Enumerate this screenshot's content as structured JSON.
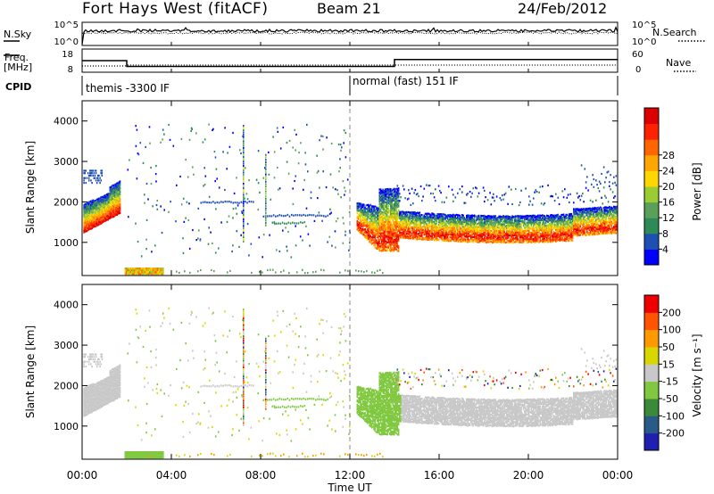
{
  "header": {
    "station": "Fort Hays West (fitACF)",
    "beam": "Beam 21",
    "date": "24/Feb/2012"
  },
  "left_labels": {
    "nsky": "N.Sky",
    "freq_line1": "Freq.",
    "freq_line2": "[MHz]",
    "cpid": "CPID"
  },
  "right_labels": {
    "nsearch": "N.Search",
    "nave": "Nave"
  },
  "cpid_modes": [
    "themis -3300 IF",
    "normal (fast) 151 IF"
  ],
  "colors": {
    "power": [
      "#0000ff",
      "#1e50b4",
      "#2e8b57",
      "#5aa05a",
      "#9acd32",
      "#ffd700",
      "#ffa500",
      "#ff6600",
      "#ff2200",
      "#dd0000"
    ],
    "velocity": [
      "#2020b0",
      "#2a5a8a",
      "#3a8a3a",
      "#80c840",
      "#c8c8c8",
      "#d8d800",
      "#ff9900",
      "#ff5500",
      "#ee0000"
    ]
  },
  "chart_data": [
    {
      "type": "line",
      "name": "noise",
      "ylabels_left": [
        "10^5",
        "10^0"
      ],
      "ylabels_right": [
        "10^5",
        "10^0"
      ]
    },
    {
      "type": "line",
      "name": "frequency-nave",
      "ylabels_left": [
        "18",
        "8"
      ],
      "ylabels_right": [
        "60",
        "0"
      ],
      "freq_steps": [
        {
          "t": 0,
          "mhz": 13
        },
        {
          "t": 2,
          "mhz": 10.5
        },
        {
          "t": 14,
          "mhz": 13.5
        },
        {
          "t": 24,
          "mhz": 13.5
        }
      ]
    },
    {
      "type": "heatmap",
      "name": "power",
      "ylabel": "Slant Range [km]",
      "yticks": [
        "1000",
        "2000",
        "3000",
        "4000"
      ],
      "yrange": [
        180,
        4500
      ],
      "colorbar_label": "Power [dB]",
      "colorbar_ticks": [
        "4",
        "8",
        "12",
        "16",
        "20",
        "24",
        "28"
      ],
      "colorbar_range": [
        0,
        30
      ]
    },
    {
      "type": "heatmap",
      "name": "velocity",
      "ylabel": "Slant Range [km]",
      "yticks": [
        "1000",
        "2000",
        "3000",
        "4000"
      ],
      "yrange": [
        180,
        4500
      ],
      "colorbar_label": "Velocity [m s⁻¹]",
      "colorbar_ticks": [
        "-200",
        "-100",
        "-50",
        "-15",
        "15",
        "50",
        "100",
        "200"
      ]
    }
  ],
  "xaxis": {
    "label": "Time UT",
    "ticks": [
      "00:00",
      "04:00",
      "08:00",
      "12:00",
      "16:00",
      "20:00",
      "00:00"
    ],
    "hours": [
      0,
      4,
      8,
      12,
      16,
      20,
      24
    ]
  }
}
